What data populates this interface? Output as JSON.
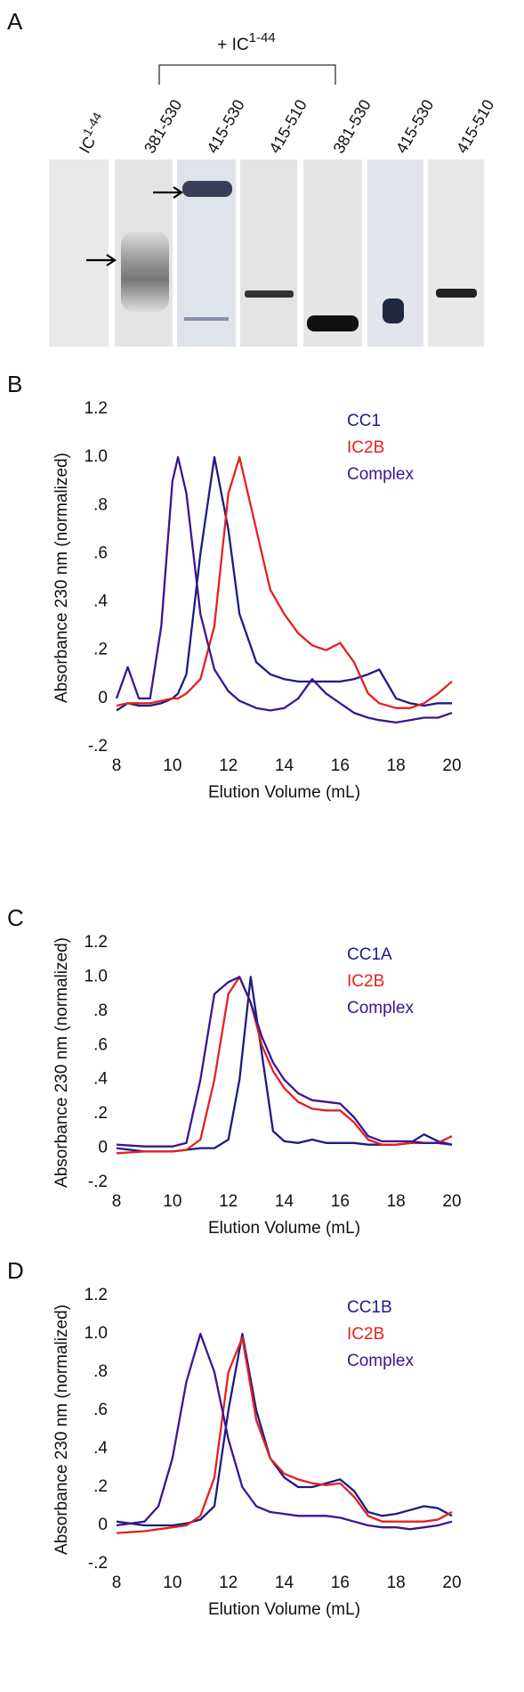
{
  "gel": {
    "panel_label": "A",
    "bracket_label": {
      "text": "+ IC",
      "superscript": "1-44"
    },
    "lanes": [
      {
        "text": "IC",
        "superscript": "1-44"
      },
      {
        "text": "381-530"
      },
      {
        "text": "415-530"
      },
      {
        "text": "415-510"
      },
      {
        "text": "381-530"
      },
      {
        "text": "415-530"
      },
      {
        "text": "415-510"
      }
    ]
  },
  "chart_data": [
    {
      "type": "line",
      "panel_label": "B",
      "xlabel": "Elution Volume (mL)",
      "ylabel": "Absorbance 230 nm (normalized)",
      "x": [
        8,
        8.4,
        8.8,
        9.2,
        9.6,
        10,
        10.2,
        10.5,
        11,
        11.5,
        12,
        12.4,
        13,
        13.5,
        14,
        14.5,
        15,
        15.5,
        16,
        16.5,
        17,
        17.4,
        18,
        18.5,
        19,
        19.5,
        20
      ],
      "series": [
        {
          "name": "CC1",
          "color": "#1c1c84",
          "values": [
            -0.05,
            -0.02,
            -0.03,
            -0.03,
            -0.02,
            0.0,
            0.02,
            0.1,
            0.6,
            1.0,
            0.7,
            0.35,
            0.15,
            0.1,
            0.08,
            0.07,
            0.07,
            0.07,
            0.07,
            0.08,
            0.1,
            0.12,
            0.0,
            -0.02,
            -0.03,
            -0.02,
            -0.02
          ]
        },
        {
          "name": "IC2B",
          "color": "#e3211f",
          "values": [
            -0.03,
            -0.02,
            -0.02,
            -0.02,
            -0.01,
            0.0,
            0.0,
            0.02,
            0.08,
            0.3,
            0.85,
            1.0,
            0.7,
            0.45,
            0.35,
            0.27,
            0.22,
            0.2,
            0.23,
            0.15,
            0.02,
            -0.02,
            -0.04,
            -0.04,
            -0.02,
            0.02,
            0.07
          ]
        },
        {
          "name": "Complex",
          "color": "#3d1590",
          "values": [
            0.0,
            0.13,
            0.0,
            0.0,
            0.3,
            0.9,
            1.0,
            0.85,
            0.35,
            0.12,
            0.03,
            -0.01,
            -0.04,
            -0.05,
            -0.04,
            0.0,
            0.08,
            0.02,
            -0.02,
            -0.06,
            -0.08,
            -0.09,
            -0.1,
            -0.09,
            -0.08,
            -0.08,
            -0.06
          ]
        }
      ],
      "xlim": [
        8,
        20
      ],
      "xticks": [
        8,
        10,
        12,
        14,
        16,
        18,
        20
      ],
      "ylim": [
        -0.2,
        1.2
      ],
      "yticks": [
        {
          "value": -0.2,
          "label": "-.2"
        },
        0,
        {
          "value": 0.2,
          "label": ".2"
        },
        {
          "value": 0.4,
          "label": ".4"
        },
        {
          "value": 0.6,
          "label": ".6"
        },
        {
          "value": 0.8,
          "label": ".8"
        },
        {
          "value": 1,
          "label": "1.0"
        },
        1.2
      ],
      "legend": "top-right"
    },
    {
      "type": "line",
      "panel_label": "C",
      "xlabel": "Elution Volume (mL)",
      "ylabel": "Absorbance 230 nm (normalized)",
      "x": [
        8,
        9,
        10,
        10.5,
        11,
        11.5,
        12,
        12.4,
        12.8,
        13.2,
        13.6,
        14,
        14.5,
        15,
        15.5,
        16,
        16.5,
        17,
        17.5,
        18,
        18.5,
        19,
        19.5,
        20
      ],
      "series": [
        {
          "name": "CC1A",
          "color": "#1c1c84",
          "values": [
            0.0,
            -0.02,
            -0.02,
            -0.01,
            0.0,
            0.0,
            0.05,
            0.4,
            1.0,
            0.55,
            0.1,
            0.04,
            0.03,
            0.05,
            0.03,
            0.03,
            0.03,
            0.02,
            0.02,
            0.02,
            0.03,
            0.08,
            0.04,
            0.02
          ]
        },
        {
          "name": "IC2B",
          "color": "#e3211f",
          "values": [
            -0.03,
            -0.02,
            -0.02,
            -0.01,
            0.05,
            0.4,
            0.9,
            1.0,
            0.85,
            0.6,
            0.45,
            0.35,
            0.27,
            0.23,
            0.22,
            0.22,
            0.15,
            0.05,
            0.02,
            0.02,
            0.03,
            0.03,
            0.03,
            0.07
          ]
        },
        {
          "name": "Complex",
          "color": "#3d1590",
          "values": [
            0.02,
            0.01,
            0.01,
            0.03,
            0.4,
            0.9,
            0.97,
            1.0,
            0.85,
            0.65,
            0.5,
            0.4,
            0.32,
            0.28,
            0.27,
            0.26,
            0.18,
            0.07,
            0.04,
            0.04,
            0.04,
            0.03,
            0.03,
            0.02
          ]
        }
      ],
      "xlim": [
        8,
        20
      ],
      "xticks": [
        8,
        10,
        12,
        14,
        16,
        18,
        20
      ],
      "ylim": [
        -0.2,
        1.2
      ],
      "yticks": [
        {
          "value": -0.2,
          "label": "-.2"
        },
        0,
        {
          "value": 0.2,
          "label": ".2"
        },
        {
          "value": 0.4,
          "label": ".4"
        },
        {
          "value": 0.6,
          "label": ".6"
        },
        {
          "value": 0.8,
          "label": ".8"
        },
        {
          "value": 1,
          "label": "1.0"
        },
        1.2
      ],
      "legend": "top-right"
    },
    {
      "type": "line",
      "panel_label": "D",
      "xlabel": "Elution Volume (mL)",
      "ylabel": "Absorbance 230 nm (normalized)",
      "x": [
        8,
        9,
        9.5,
        10,
        10.5,
        11,
        11.5,
        12,
        12.5,
        13,
        13.5,
        14,
        14.5,
        15,
        15.5,
        16,
        16.5,
        17,
        17.5,
        18,
        18.5,
        19,
        19.5,
        20
      ],
      "series": [
        {
          "name": "CC1B",
          "color": "#1c1c84",
          "values": [
            0.02,
            0.0,
            0.0,
            0.0,
            0.01,
            0.03,
            0.1,
            0.6,
            1.0,
            0.6,
            0.35,
            0.25,
            0.2,
            0.2,
            0.22,
            0.24,
            0.18,
            0.07,
            0.05,
            0.06,
            0.08,
            0.1,
            0.09,
            0.05
          ]
        },
        {
          "name": "IC2B",
          "color": "#e3211f",
          "values": [
            -0.04,
            -0.03,
            -0.02,
            -0.01,
            0.0,
            0.05,
            0.25,
            0.8,
            0.98,
            0.55,
            0.35,
            0.27,
            0.24,
            0.22,
            0.21,
            0.22,
            0.15,
            0.05,
            0.02,
            0.02,
            0.02,
            0.02,
            0.03,
            0.07
          ]
        },
        {
          "name": "Complex",
          "color": "#3d1590",
          "values": [
            0.0,
            0.02,
            0.1,
            0.35,
            0.75,
            1.0,
            0.8,
            0.45,
            0.2,
            0.1,
            0.07,
            0.06,
            0.05,
            0.05,
            0.05,
            0.04,
            0.02,
            0.0,
            -0.01,
            -0.01,
            -0.02,
            -0.01,
            0.0,
            0.02
          ]
        }
      ],
      "xlim": [
        8,
        20
      ],
      "xticks": [
        8,
        10,
        12,
        14,
        16,
        18,
        20
      ],
      "ylim": [
        -0.2,
        1.2
      ],
      "yticks": [
        {
          "value": -0.2,
          "label": "-.2"
        },
        0,
        {
          "value": 0.2,
          "label": ".2"
        },
        {
          "value": 0.4,
          "label": ".4"
        },
        {
          "value": 0.6,
          "label": ".6"
        },
        {
          "value": 0.8,
          "label": ".8"
        },
        {
          "value": 1,
          "label": "1.0"
        },
        1.2
      ],
      "legend": "top-right"
    }
  ]
}
